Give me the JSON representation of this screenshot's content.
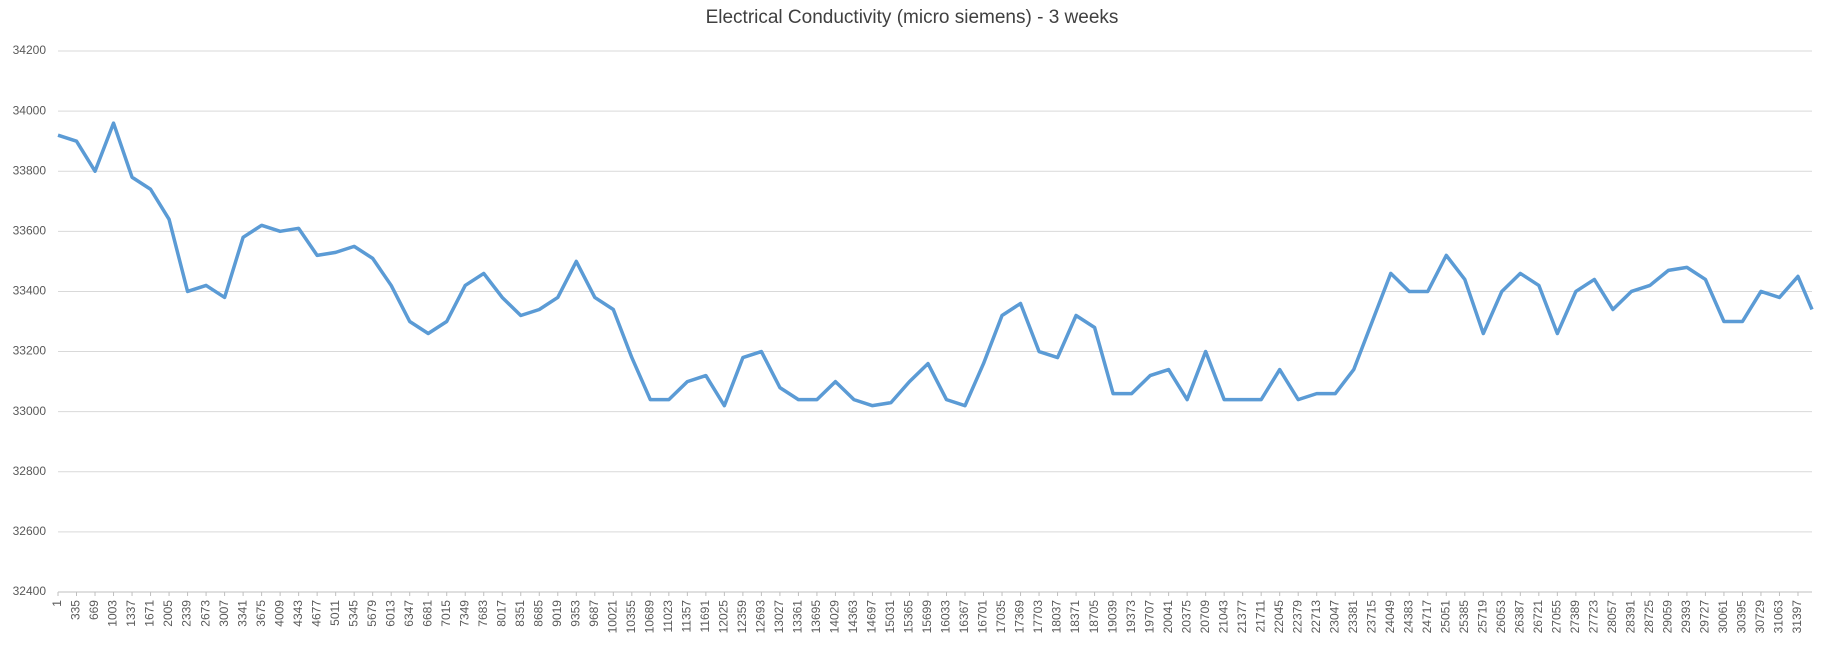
{
  "chart_data": {
    "type": "line",
    "title": "Electrical Conductivity (micro siemens) - 3 weeks",
    "x": [
      1,
      335,
      669,
      1003,
      1337,
      1671,
      2005,
      2339,
      2673,
      3007,
      3341,
      3675,
      4009,
      4343,
      4677,
      5011,
      5345,
      5679,
      6013,
      6347,
      6681,
      7015,
      7349,
      7683,
      8017,
      8351,
      8685,
      9019,
      9353,
      9687,
      10021,
      10355,
      10689,
      11023,
      11357,
      11691,
      12025,
      12359,
      12693,
      13027,
      13361,
      13695,
      14029,
      14363,
      14697,
      15031,
      15365,
      15699,
      16033,
      16367,
      16701,
      17035,
      17369,
      17703,
      18037,
      18371,
      18705,
      19039,
      19373,
      19707,
      20041,
      20375,
      20709,
      21043,
      21377,
      21711,
      22045,
      22379,
      22713,
      23047,
      23381,
      23715,
      24049,
      24383,
      24717,
      25051,
      25385,
      25719,
      26053,
      26387,
      26721,
      27055,
      27389,
      27723,
      28057,
      28391,
      28725,
      29059,
      29393,
      29727,
      30061,
      30395,
      30729,
      31063,
      31397,
      31650
    ],
    "series": [
      {
        "name": "Electrical Conductivity",
        "color": "#5b9bd5",
        "values": [
          33920,
          33900,
          33800,
          33960,
          33780,
          33740,
          33640,
          33400,
          33420,
          33380,
          33580,
          33620,
          33600,
          33610,
          33520,
          33530,
          33550,
          33510,
          33420,
          33300,
          33260,
          33300,
          33420,
          33460,
          33380,
          33320,
          33340,
          33380,
          33500,
          33380,
          33340,
          33180,
          33040,
          33040,
          33100,
          33120,
          33020,
          33180,
          33200,
          33080,
          33040,
          33040,
          33100,
          33040,
          33020,
          33030,
          33100,
          33160,
          33040,
          33020,
          33160,
          33320,
          33360,
          33200,
          33180,
          33320,
          33280,
          33060,
          33060,
          33120,
          33140,
          33040,
          33200,
          33040,
          33040,
          33040,
          33140,
          33040,
          33060,
          33060,
          33140,
          33300,
          33460,
          33400,
          33400,
          33520,
          33440,
          33260,
          33400,
          33460,
          33420,
          33260,
          33400,
          33440,
          33340,
          33400,
          33420,
          33470,
          33480,
          33440,
          33300,
          33300,
          33400,
          33380,
          33450,
          33340
        ]
      }
    ],
    "xlim": [
      1,
      31650
    ],
    "xticks": [
      1,
      335,
      669,
      1003,
      1337,
      1671,
      2005,
      2339,
      2673,
      3007,
      3341,
      3675,
      4009,
      4343,
      4677,
      5011,
      5345,
      5679,
      6013,
      6347,
      6681,
      7015,
      7349,
      7683,
      8017,
      8351,
      8685,
      9019,
      9353,
      9687,
      10021,
      10355,
      10689,
      11023,
      11357,
      11691,
      12025,
      12359,
      12693,
      13027,
      13361,
      13695,
      14029,
      14363,
      14697,
      15031,
      15365,
      15699,
      16033,
      16367,
      16701,
      17035,
      17369,
      17703,
      18037,
      18371,
      18705,
      19039,
      19373,
      19707,
      20041,
      20375,
      20709,
      21043,
      21377,
      21711,
      22045,
      22379,
      22713,
      23047,
      23381,
      23715,
      24049,
      24383,
      24717,
      25051,
      25385,
      25719,
      26053,
      26387,
      26721,
      27055,
      27389,
      27723,
      28057,
      28391,
      28725,
      29059,
      29393,
      29727,
      30061,
      30395,
      30729,
      31063,
      31397
    ],
    "ylim": [
      32400,
      34200
    ],
    "yticks": [
      32400,
      32600,
      32800,
      33000,
      33200,
      33400,
      33600,
      33800,
      34000,
      34200
    ],
    "grid": true
  }
}
